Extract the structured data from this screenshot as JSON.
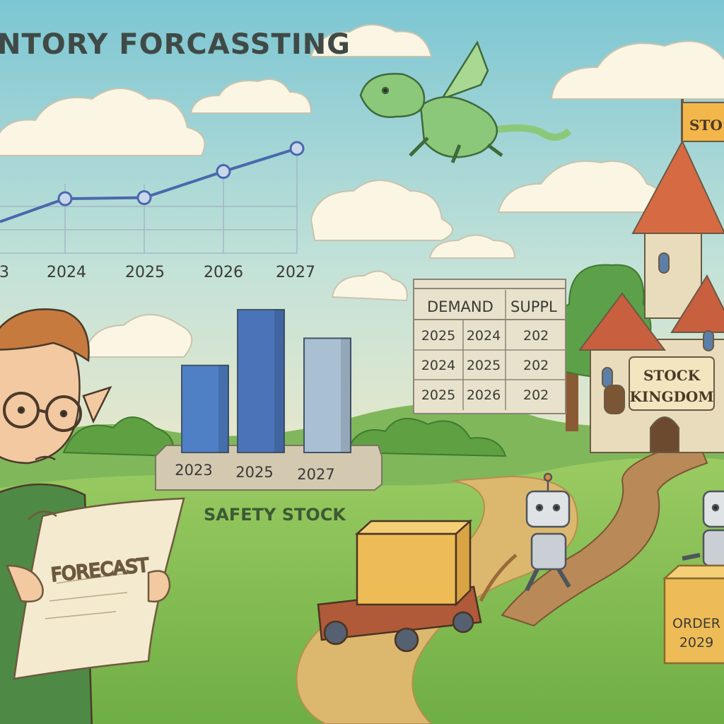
{
  "title": "NTORY FORCASSTING",
  "line_chart": {
    "ticks": [
      "3",
      "2024",
      "2025",
      "2026",
      "2027"
    ],
    "values": [
      0.3,
      0.52,
      0.53,
      0.78,
      1.0
    ]
  },
  "bar_chart": {
    "ticks": [
      "2023",
      "2025",
      "2027"
    ],
    "values": [
      0.61,
      1.0,
      0.8
    ],
    "colors": [
      "#4f7fc4",
      "#4a73b8",
      "#a9bfd2"
    ]
  },
  "safety_label": "SAFETY STOCK",
  "table": {
    "headers": [
      "DEMAND",
      "SUPPL"
    ],
    "rows": [
      [
        "2025",
        "2024",
        "202"
      ],
      [
        "2024",
        "2025",
        "202"
      ],
      [
        "2025",
        "2026",
        "202"
      ]
    ]
  },
  "scroll_text": "FORECAST",
  "castle": {
    "sign": [
      "STOCK",
      "KINGDOM"
    ],
    "flag": "STO"
  },
  "box_label": [
    "ORDER",
    "2029"
  ],
  "colors": {
    "sky": "#8fcfd8",
    "grass": "#8cc45a",
    "path": "#d9b56f",
    "dragon": "#8cc87a"
  }
}
